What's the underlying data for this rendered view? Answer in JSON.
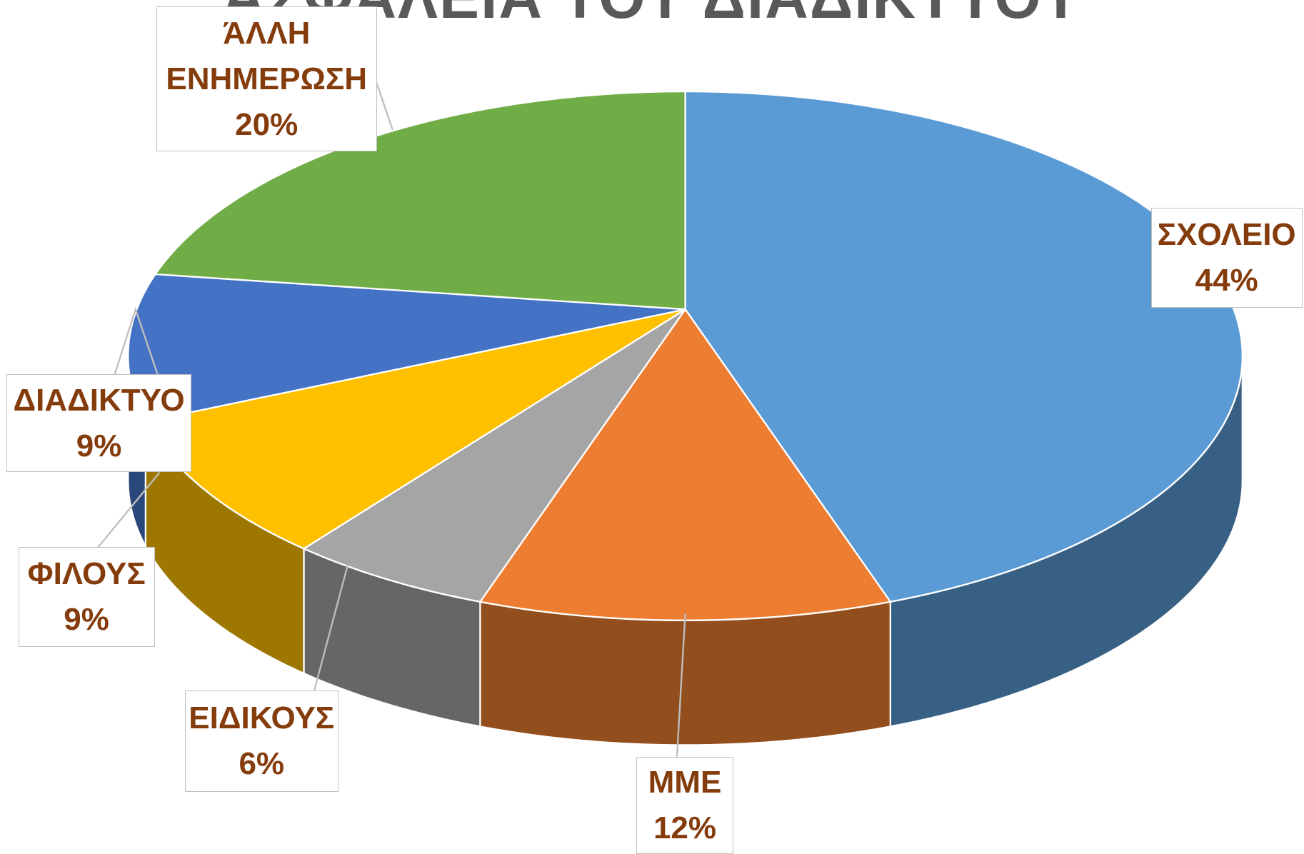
{
  "chart_data": {
    "type": "pie3d",
    "title": "ΑΣΦΑΛΕΙΑ ΤΟΥ ΔΙΑΔΙΚΤΥΟΥ",
    "categories": [
      "ΣΧΟΛΕΙΟ",
      "ΜΜΕ",
      "ΕΙΔΙΚΟΥΣ",
      "ΦΙΛΟΥΣ",
      "ΔΙΑΔΙΚΤΥΟ",
      "ΆΛΛΗ ΕΝΗΜΕΡΩΣΗ"
    ],
    "values": [
      44,
      12,
      6,
      9,
      9,
      20
    ],
    "value_labels": [
      "44%",
      "12%",
      "6%",
      "9%",
      "9%",
      "20%"
    ],
    "colors": [
      "#5b9bd5",
      "#ed7d31",
      "#a5a5a5",
      "#ffc000",
      "#4472c4",
      "#70ad47"
    ]
  }
}
